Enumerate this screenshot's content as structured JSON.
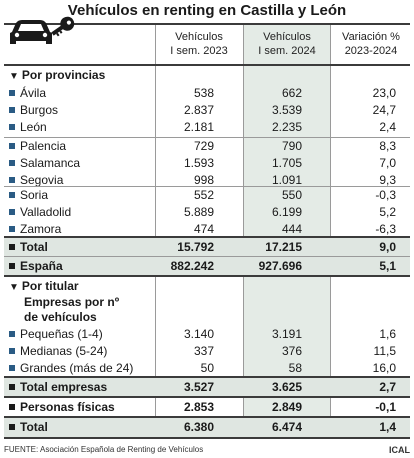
{
  "title": "Vehículos en renting en Castilla y León",
  "columns": {
    "c1": [
      "Vehículos",
      "I sem. 2023"
    ],
    "c2": [
      "Vehículos",
      "I sem. 2024"
    ],
    "c3": [
      "Variación %",
      "2023-2024"
    ]
  },
  "section_provinces": "Por provincias",
  "provinces": [
    {
      "name": "Ávila",
      "v2023": "538",
      "v2024": "662",
      "var": "23,0"
    },
    {
      "name": "Burgos",
      "v2023": "2.837",
      "v2024": "3.539",
      "var": "24,7"
    },
    {
      "name": "León",
      "v2023": "2.181",
      "v2024": "2.235",
      "var": "2,4"
    },
    {
      "name": "Palencia",
      "v2023": "729",
      "v2024": "790",
      "var": "8,3"
    },
    {
      "name": "Salamanca",
      "v2023": "1.593",
      "v2024": "1.705",
      "var": "7,0"
    },
    {
      "name": "Segovia",
      "v2023": "998",
      "v2024": "1.091",
      "var": "9,3"
    },
    {
      "name": "Soria",
      "v2023": "552",
      "v2024": "550",
      "var": "-0,3"
    },
    {
      "name": "Valladolid",
      "v2023": "5.889",
      "v2024": "6.199",
      "var": "5,2"
    },
    {
      "name": "Zamora",
      "v2023": "474",
      "v2024": "444",
      "var": "-6,3"
    }
  ],
  "total": {
    "name": "Total",
    "v2023": "15.792",
    "v2024": "17.215",
    "var": "9,0"
  },
  "espana": {
    "name": "España",
    "v2023": "882.242",
    "v2024": "927.696",
    "var": "5,1"
  },
  "section_owner": "Por titular",
  "subsection_companies": [
    "Empresas por nº",
    "de vehículos"
  ],
  "companies": [
    {
      "name": "Pequeñas (1-4)",
      "v2023": "3.140",
      "v2024": "3.191",
      "var": "1,6"
    },
    {
      "name": "Medianas (5-24)",
      "v2023": "337",
      "v2024": "376",
      "var": "11,5"
    },
    {
      "name": "Grandes (más de 24)",
      "v2023": "50",
      "v2024": "58",
      "var": "16,0"
    }
  ],
  "total_companies": {
    "name": "Total empresas",
    "v2023": "3.527",
    "v2024": "3.625",
    "var": "2,7"
  },
  "persons": {
    "name": "Personas físicas",
    "v2023": "2.853",
    "v2024": "2.849",
    "var": "-0,1"
  },
  "total_owner": {
    "name": "Total",
    "v2023": "6.380",
    "v2024": "6.474",
    "var": "1,4"
  },
  "footer": {
    "source": "FUENTE: Asociación Española de Renting de Vehículos",
    "brand": "ICAL"
  },
  "colors": {
    "accent": "#2a5b84",
    "shade": "#e4ebe6"
  }
}
